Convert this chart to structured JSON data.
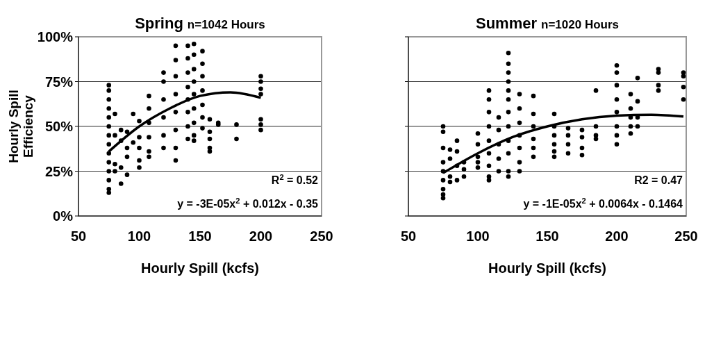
{
  "chart_data": [
    {
      "type": "scatter",
      "title": "Spring",
      "subtitle": "n=1042 Hours",
      "xlabel": "Hourly Spill (kcfs)",
      "ylabel": "Hourly Spill Efficiency",
      "xlim": [
        50,
        250
      ],
      "xticks": [
        50,
        100,
        150,
        200,
        250
      ],
      "ylim": [
        0,
        100
      ],
      "yticks": [
        {
          "value": 0,
          "label": "0%"
        },
        {
          "value": 25,
          "label": "25%"
        },
        {
          "value": 50,
          "label": "50%"
        },
        {
          "value": 75,
          "label": "75%"
        },
        {
          "value": 100,
          "label": "100%"
        }
      ],
      "grid": "y",
      "marker": "circle",
      "annotations": [
        "R$^{2}$ = 0.52",
        "y = -3E-05x$^{2}$ + 0.012x - 0.35"
      ],
      "series": [
        {
          "color": "#000000",
          "x": [
            75,
            75,
            75,
            75,
            75,
            75,
            75,
            75,
            75,
            75,
            75,
            75,
            75,
            75,
            80,
            80,
            80,
            80,
            85,
            85,
            85,
            85,
            90,
            90,
            90,
            90,
            95,
            95,
            100,
            100,
            100,
            100,
            100,
            108,
            108,
            108,
            108,
            108,
            108,
            120,
            120,
            120,
            120,
            120,
            120,
            130,
            130,
            130,
            130,
            130,
            130,
            130,
            130,
            140,
            140,
            140,
            140,
            140,
            140,
            140,
            140,
            145,
            145,
            145,
            145,
            145,
            145,
            145,
            145,
            145,
            152,
            152,
            152,
            152,
            152,
            152,
            152,
            158,
            158,
            158,
            158,
            158,
            165,
            165,
            180,
            180,
            200,
            200,
            200,
            200,
            200,
            200,
            200
          ],
          "values": [
            73,
            70,
            65,
            60,
            55,
            50,
            45,
            40,
            35,
            30,
            25,
            20,
            15,
            13,
            57,
            45,
            29,
            25,
            48,
            42,
            27,
            18,
            47,
            38,
            33,
            23,
            57,
            41,
            53,
            44,
            38,
            31,
            27,
            67,
            60,
            52,
            44,
            36,
            33,
            80,
            75,
            65,
            55,
            45,
            38,
            95,
            87,
            78,
            68,
            58,
            48,
            38,
            31,
            95,
            88,
            80,
            72,
            65,
            58,
            50,
            43,
            96,
            90,
            82,
            75,
            68,
            60,
            52,
            45,
            42,
            92,
            85,
            78,
            70,
            62,
            55,
            49,
            54,
            47,
            43,
            38,
            36,
            52,
            51,
            51,
            43,
            78,
            75,
            71,
            68,
            54,
            51,
            48
          ]
        },
        {
          "type": "line",
          "marker": "none",
          "color": "#000000",
          "x": [
            75,
            100,
            125,
            150,
            175,
            200
          ],
          "values": [
            36,
            50,
            60,
            67,
            69,
            66
          ]
        }
      ]
    },
    {
      "type": "scatter",
      "title": "Summer",
      "subtitle": "n=1020 Hours",
      "xlabel": "Hourly Spill (kcfs)",
      "xlim": [
        50,
        250
      ],
      "xticks": [
        50,
        100,
        150,
        200,
        250
      ],
      "ylim": [
        0,
        100
      ],
      "yticks": [
        {
          "value": 0,
          "label": null
        },
        {
          "value": 25,
          "label": null
        },
        {
          "value": 50,
          "label": null
        },
        {
          "value": 75,
          "label": null
        },
        {
          "value": 100,
          "label": null
        }
      ],
      "tick_labels": "x",
      "grid": "y",
      "marker": "circle",
      "annotations": [
        "R2 = 0.47",
        "y = -1E-05x$^{2}$ + 0.0064x - 0.1464"
      ],
      "series": [
        {
          "color": "#000000",
          "x": [
            75,
            75,
            75,
            75,
            75,
            75,
            75,
            75,
            75,
            80,
            80,
            80,
            80,
            85,
            85,
            85,
            85,
            90,
            90,
            90,
            100,
            100,
            100,
            100,
            100,
            108,
            108,
            108,
            108,
            108,
            108,
            108,
            108,
            108,
            115,
            115,
            115,
            115,
            115,
            122,
            122,
            122,
            122,
            122,
            122,
            122,
            122,
            122,
            122,
            122,
            122,
            130,
            130,
            130,
            130,
            130,
            130,
            130,
            140,
            140,
            140,
            140,
            140,
            140,
            155,
            155,
            155,
            155,
            155,
            155,
            165,
            165,
            165,
            165,
            175,
            175,
            175,
            175,
            185,
            185,
            185,
            185,
            200,
            200,
            200,
            200,
            200,
            200,
            200,
            200,
            210,
            210,
            210,
            210,
            210,
            215,
            215,
            215,
            215,
            230,
            230,
            230,
            230,
            248,
            248,
            248,
            248
          ],
          "values": [
            50,
            47,
            38,
            30,
            25,
            20,
            15,
            12,
            10,
            37,
            32,
            22,
            19,
            42,
            36,
            28,
            20,
            30,
            26,
            22,
            46,
            40,
            33,
            30,
            27,
            70,
            65,
            58,
            50,
            42,
            35,
            28,
            22,
            20,
            55,
            48,
            40,
            32,
            25,
            91,
            85,
            80,
            75,
            70,
            65,
            58,
            50,
            42,
            35,
            25,
            22,
            68,
            60,
            52,
            45,
            38,
            30,
            25,
            67,
            57,
            50,
            43,
            38,
            33,
            57,
            50,
            45,
            40,
            36,
            33,
            49,
            45,
            40,
            35,
            48,
            44,
            38,
            34,
            70,
            50,
            45,
            43,
            84,
            80,
            73,
            65,
            58,
            50,
            45,
            40,
            68,
            60,
            55,
            50,
            46,
            77,
            64,
            55,
            50,
            82,
            80,
            73,
            70,
            80,
            78,
            72,
            65
          ]
        },
        {
          "type": "line",
          "marker": "none",
          "color": "#000000",
          "x": [
            75,
            100,
            125,
            150,
            175,
            200,
            225,
            248
          ],
          "values": [
            24,
            35,
            44,
            50,
            54,
            56,
            56.5,
            55.5
          ]
        }
      ]
    }
  ]
}
